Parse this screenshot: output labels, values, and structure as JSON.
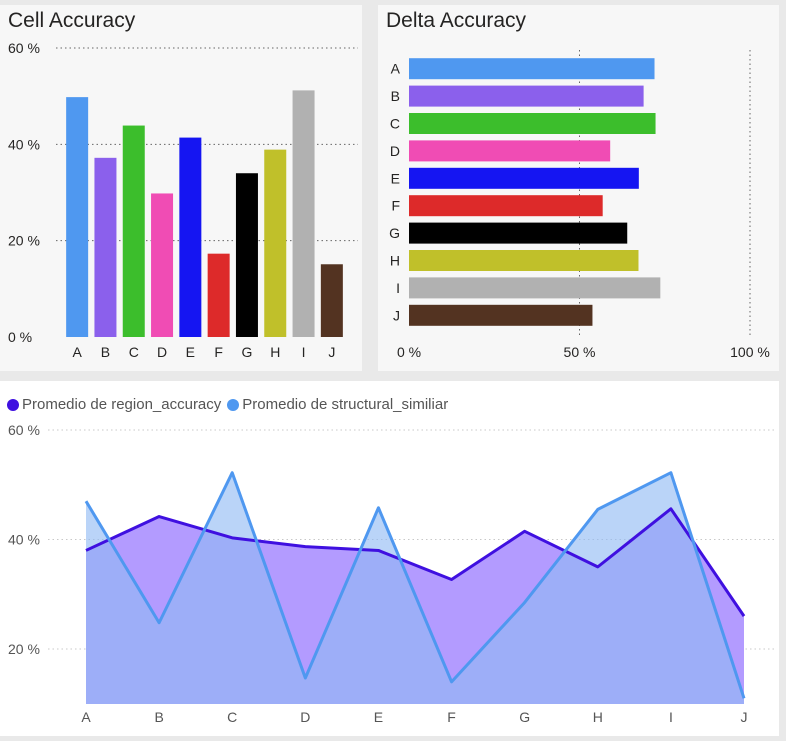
{
  "chart_data": [
    {
      "type": "bar",
      "title": "Cell Accuracy",
      "categories": [
        "A",
        "B",
        "C",
        "D",
        "E",
        "F",
        "G",
        "H",
        "I",
        "J"
      ],
      "values": [
        49.8,
        37.2,
        43.9,
        29.8,
        41.4,
        17.3,
        34.0,
        38.9,
        51.2,
        15.1
      ],
      "colors": [
        "#4f98f0",
        "#8b60ec",
        "#3cbe2c",
        "#f04cb4",
        "#1515f2",
        "#dd2a2a",
        "#000000",
        "#c0c02a",
        "#b1b1b1",
        "#533321"
      ],
      "ylim": [
        0,
        60
      ],
      "yticks": [
        0,
        20,
        40,
        60
      ],
      "ytick_labels": [
        "0 %",
        "20 %",
        "40 %",
        "60 %"
      ],
      "grid": true
    },
    {
      "type": "bar",
      "orientation": "horizontal",
      "title": "Delta Accuracy",
      "categories": [
        "A",
        "B",
        "C",
        "D",
        "E",
        "F",
        "G",
        "H",
        "I",
        "J"
      ],
      "values": [
        72.0,
        68.8,
        72.3,
        59.0,
        67.4,
        56.8,
        64.0,
        67.3,
        73.7,
        53.8
      ],
      "colors": [
        "#4f98f0",
        "#8b60ec",
        "#3cbe2c",
        "#f04cb4",
        "#1515f2",
        "#dd2a2a",
        "#000000",
        "#c0c02a",
        "#b1b1b1",
        "#533321"
      ],
      "xlim": [
        0,
        100
      ],
      "xticks": [
        0,
        50,
        100
      ],
      "xtick_labels": [
        "0 %",
        "50 %",
        "100 %"
      ],
      "grid": true
    },
    {
      "type": "area",
      "categories": [
        "A",
        "B",
        "C",
        "D",
        "E",
        "F",
        "G",
        "H",
        "I",
        "J"
      ],
      "series": [
        {
          "name": "Promedio de region_accuracy",
          "color": "#3f10e0",
          "values": [
            38.0,
            44.2,
            40.3,
            38.7,
            38.0,
            32.7,
            41.5,
            35.0,
            45.6,
            26.0
          ]
        },
        {
          "name": "Promedio de structural_similiar",
          "color": "#4f98f0",
          "values": [
            47.0,
            24.8,
            52.2,
            14.7,
            45.8,
            14.0,
            28.5,
            45.5,
            52.2,
            11.0
          ]
        }
      ],
      "ylim": [
        10,
        60
      ],
      "yticks": [
        20,
        40,
        60
      ],
      "ytick_labels": [
        "20 %",
        "40 %",
        "60 %"
      ],
      "legend": "top-left",
      "grid": true
    }
  ]
}
